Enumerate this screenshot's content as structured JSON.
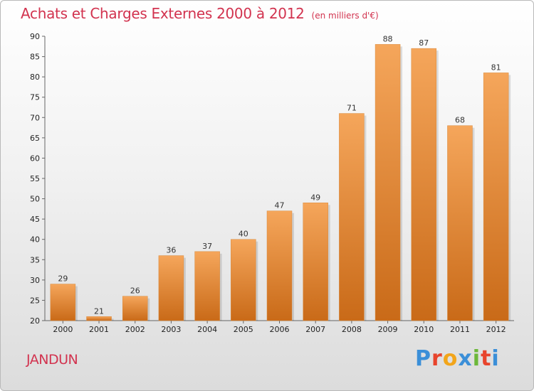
{
  "header": {
    "title": "Achats et Charges Externes 2000 à 2012",
    "unit": "(en milliers d'€)"
  },
  "footer": {
    "commune": "JANDUN",
    "brand": "Proxiti"
  },
  "colors": {
    "title": "#d2334f",
    "bar_top": "#f5a65b",
    "bar_bottom": "#c96a18",
    "brand_letters": [
      "#3b8fd8",
      "#e8442c",
      "#f2a51a",
      "#3b8fd8",
      "#6cb83a",
      "#e8442c",
      "#3b8fd8"
    ]
  },
  "chart_data": {
    "type": "bar",
    "categories": [
      "2000",
      "2001",
      "2002",
      "2003",
      "2004",
      "2005",
      "2006",
      "2007",
      "2008",
      "2009",
      "2010",
      "2011",
      "2012"
    ],
    "values": [
      29,
      21,
      26,
      36,
      37,
      40,
      47,
      49,
      71,
      88,
      87,
      68,
      81
    ],
    "ylim": [
      20,
      90
    ],
    "yticks": [
      20,
      25,
      30,
      35,
      40,
      45,
      50,
      55,
      60,
      65,
      70,
      75,
      80,
      85,
      90
    ],
    "grid": false,
    "legend": "none"
  }
}
